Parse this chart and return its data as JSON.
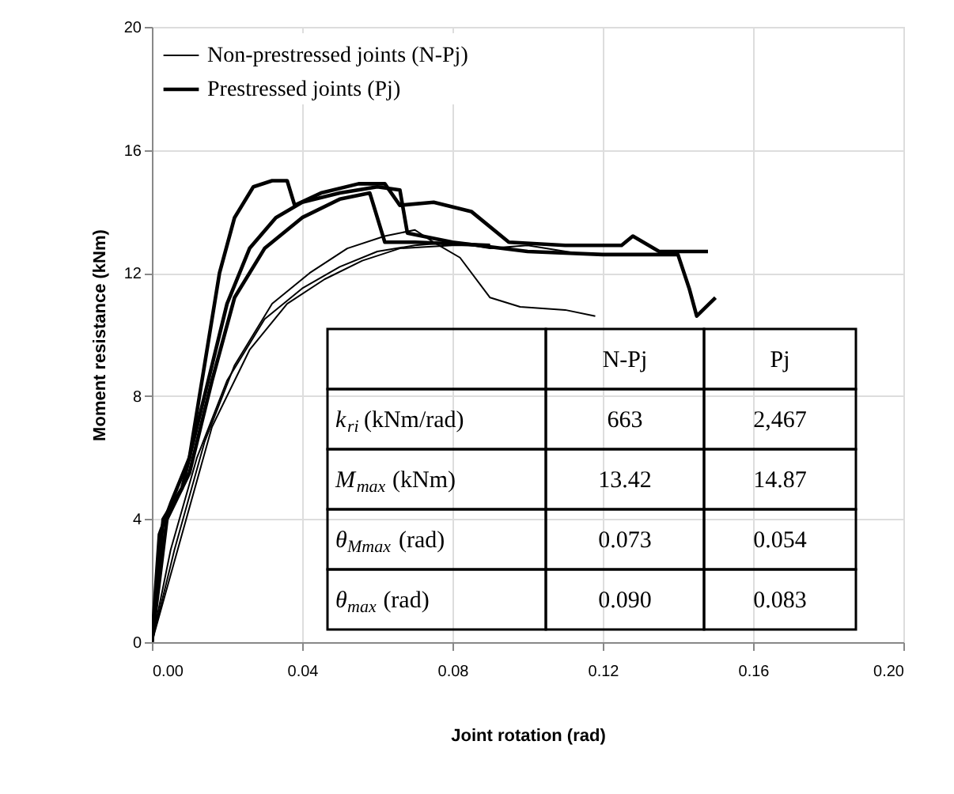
{
  "chart_data": {
    "type": "line",
    "xlabel": "Joint rotation (rad)",
    "ylabel": "Moment resistance (kNm)",
    "xlim": [
      0,
      0.2
    ],
    "ylim": [
      0,
      20
    ],
    "xticks": [
      {
        "value": 0,
        "label": "0.00"
      },
      {
        "value": 0.04,
        "label": "0.04"
      },
      {
        "value": 0.08,
        "label": "0.08"
      },
      {
        "value": 0.12,
        "label": "0.12"
      },
      {
        "value": 0.16,
        "label": "0.16"
      },
      {
        "value": 0.2,
        "label": "0.20"
      }
    ],
    "yticks": [
      0,
      4,
      8,
      12,
      16,
      20
    ],
    "grid": true,
    "legend": "top left",
    "marker": "none",
    "line_style": "solid",
    "series": [
      {
        "name": "Non-prestressed joints (N-Pj)",
        "color": "#000000",
        "x": [
          0,
          0.005,
          0.012,
          0.02,
          0.03,
          0.04,
          0.05,
          0.06,
          0.07,
          0.08,
          0.09,
          0.1,
          0.115
        ],
        "values": [
          0,
          3,
          6,
          8.5,
          10.5,
          11.5,
          12.2,
          12.7,
          12.9,
          13.0,
          12.8,
          12.9,
          12.6
        ]
      },
      {
        "color": "#000000",
        "x": [
          0,
          0.006,
          0.014,
          0.022,
          0.032,
          0.042,
          0.052,
          0.062,
          0.07,
          0.075,
          0.082,
          0.09,
          0.098,
          0.11,
          0.118
        ],
        "values": [
          0,
          3,
          6.5,
          9,
          11,
          12,
          12.8,
          13.2,
          13.4,
          13.0,
          12.5,
          11.2,
          10.9,
          10.8,
          10.6
        ]
      },
      {
        "color": "#000000",
        "x": [
          0,
          0.008,
          0.016,
          0.026,
          0.036,
          0.046,
          0.056,
          0.066,
          0.08,
          0.09
        ],
        "values": [
          0,
          3.5,
          7,
          9.5,
          11,
          11.8,
          12.4,
          12.8,
          12.9,
          12.9
        ]
      },
      {
        "name": "Prestressed joints (Pj)",
        "color": "#000000",
        "x": [
          0,
          0.002,
          0.005,
          0.01,
          0.014,
          0.018,
          0.022,
          0.027,
          0.032,
          0.036,
          0.038,
          0.045,
          0.055,
          0.062,
          0.066,
          0.075,
          0.085,
          0.095,
          0.11,
          0.125,
          0.128,
          0.135,
          0.148
        ],
        "values": [
          0,
          3.5,
          4.5,
          6,
          9,
          12,
          13.8,
          14.8,
          15.0,
          15.0,
          14.2,
          14.6,
          14.9,
          14.9,
          14.2,
          14.3,
          14.0,
          13.0,
          12.9,
          12.9,
          13.2,
          12.7,
          12.7
        ]
      },
      {
        "color": "#000000",
        "x": [
          0,
          0.003,
          0.008,
          0.014,
          0.02,
          0.026,
          0.033,
          0.04,
          0.05,
          0.06,
          0.066,
          0.068,
          0.08,
          0.1,
          0.12,
          0.14,
          0.143,
          0.145,
          0.15
        ],
        "values": [
          0,
          4,
          5,
          8,
          11,
          12.8,
          13.8,
          14.3,
          14.6,
          14.8,
          14.7,
          13.3,
          13.0,
          12.7,
          12.6,
          12.6,
          11.5,
          10.6,
          11.2
        ]
      },
      {
        "color": "#000000",
        "x": [
          0,
          0.004,
          0.01,
          0.016,
          0.022,
          0.03,
          0.04,
          0.05,
          0.058,
          0.062,
          0.07,
          0.09
        ],
        "values": [
          0,
          4,
          5.5,
          8.5,
          11.2,
          12.8,
          13.8,
          14.4,
          14.6,
          13.0,
          13.0,
          12.9
        ]
      }
    ],
    "annotations": [
      "N-Pj",
      "Pj",
      "k$_{ri}$ (kNm/rad)",
      "663",
      "2,467",
      "M$_{max}$ (kNm)",
      "13.42",
      "14.87",
      "θ$_{Mmax}$ (rad)",
      "0.073",
      "0.054",
      "θ$_{max}$ (rad)",
      "0.090",
      "0.083"
    ]
  }
}
